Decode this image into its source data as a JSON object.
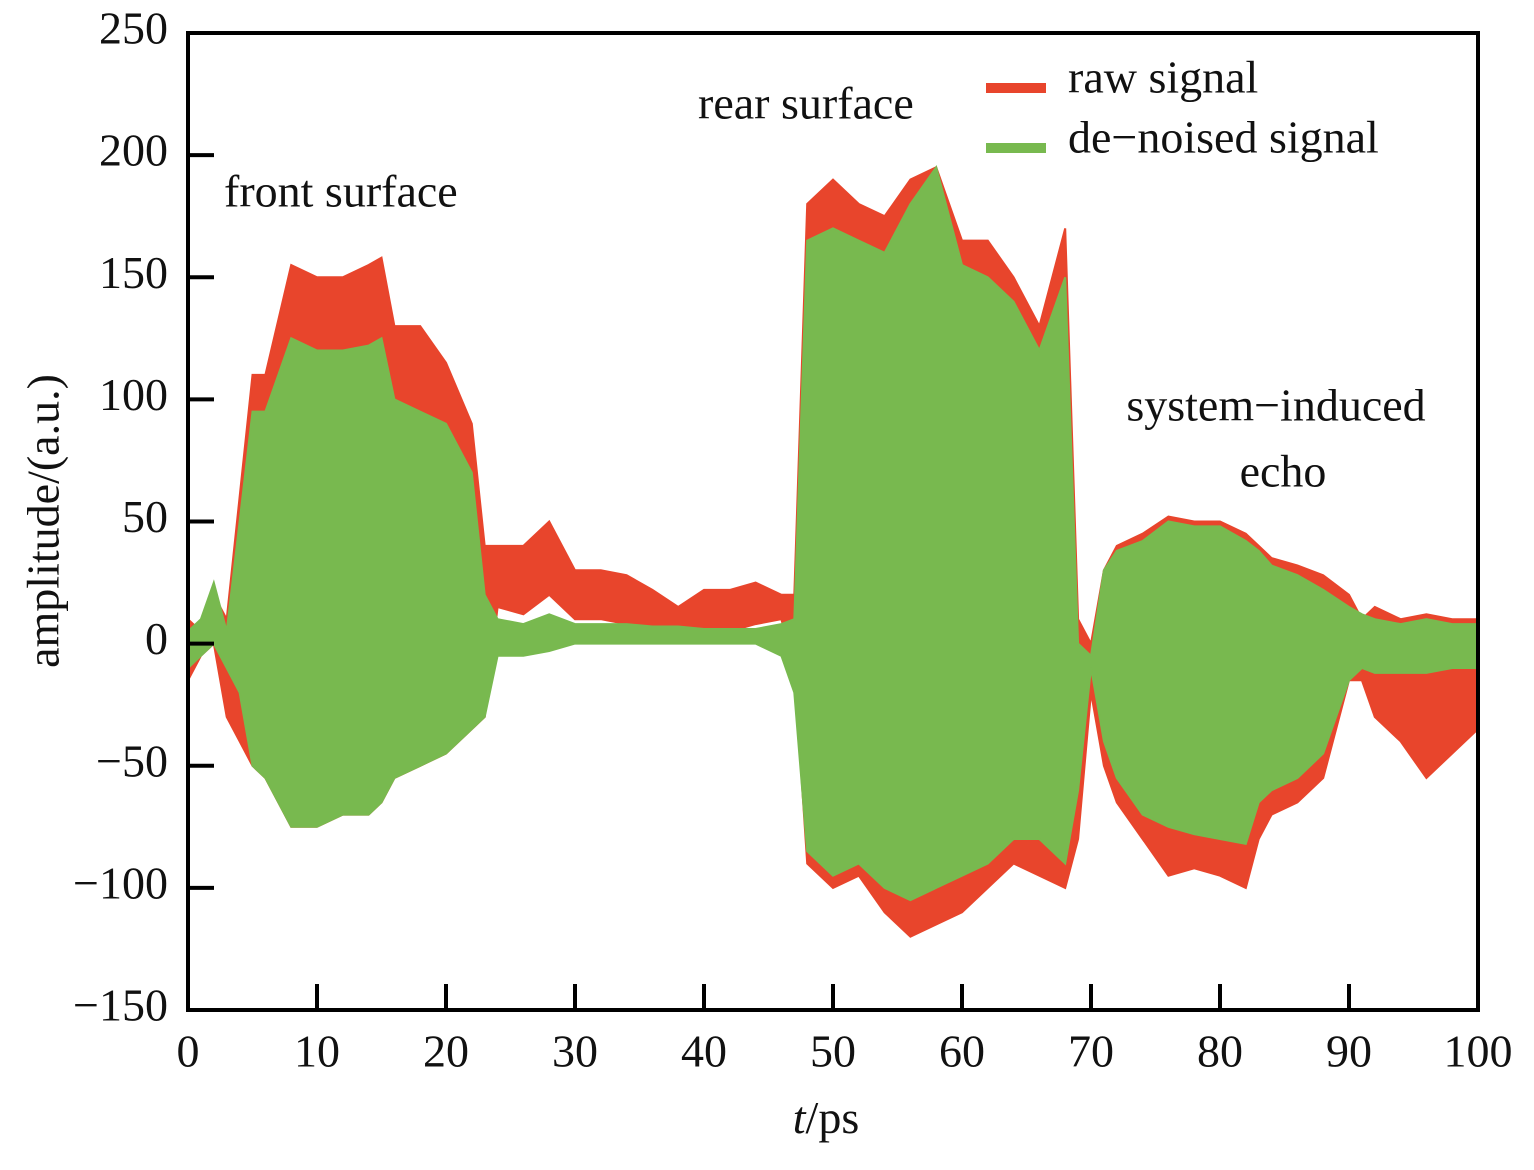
{
  "chart_data": {
    "type": "band",
    "xlabel_italic": "t",
    "xlabel_rest": "/ps",
    "ylabel": "amplitude/(a.u.)",
    "annotations": [
      "front surface",
      "rear surface",
      "system−induced",
      "echo"
    ],
    "xlim": [
      0,
      100
    ],
    "xticks": [
      0,
      10,
      20,
      30,
      40,
      50,
      60,
      70,
      80,
      90,
      100
    ],
    "ylim": [
      -150,
      250
    ],
    "yticks": [
      {
        "value": -150,
        "label": "−150"
      },
      {
        "value": -100,
        "label": "−100"
      },
      {
        "value": -50,
        "label": "−50"
      },
      0,
      50,
      100,
      150,
      200,
      250
    ],
    "legend": "upper right",
    "x": [
      0,
      1,
      2,
      3,
      4,
      5,
      6,
      8,
      10,
      12,
      14,
      15,
      16,
      18,
      20,
      22,
      23,
      24,
      26,
      28,
      30,
      32,
      34,
      36,
      38,
      40,
      42,
      44,
      46,
      47,
      48,
      50,
      52,
      54,
      56,
      58,
      60,
      62,
      64,
      66,
      68,
      69,
      70,
      71,
      72,
      74,
      76,
      78,
      80,
      82,
      83,
      84,
      86,
      88,
      90,
      91,
      92,
      94,
      96,
      98,
      100
    ],
    "series": [
      {
        "name": "raw signal",
        "color": "#e8452c",
        "upper": [
          10,
          5,
          20,
          10,
          60,
          110,
          110,
          155,
          150,
          150,
          155,
          158,
          130,
          130,
          115,
          90,
          40,
          40,
          40,
          50,
          30,
          30,
          28,
          22,
          15,
          22,
          22,
          25,
          20,
          20,
          180,
          190,
          180,
          175,
          190,
          195,
          165,
          165,
          150,
          130,
          170,
          10,
          0,
          30,
          40,
          45,
          52,
          50,
          50,
          45,
          40,
          35,
          32,
          28,
          20,
          10,
          15,
          10,
          12,
          10,
          10
        ],
        "lower": [
          -15,
          -5,
          0,
          -30,
          -40,
          -50,
          -55,
          -75,
          -75,
          -70,
          -70,
          -65,
          -55,
          -50,
          -45,
          -35,
          -30,
          15,
          12,
          20,
          10,
          10,
          8,
          5,
          5,
          5,
          5,
          8,
          10,
          -10,
          -90,
          -100,
          -95,
          -110,
          -120,
          -115,
          -110,
          -100,
          -90,
          -95,
          -100,
          -80,
          -20,
          -50,
          -65,
          -80,
          -95,
          -92,
          -95,
          -100,
          -80,
          -70,
          -65,
          -55,
          -15,
          -15,
          -30,
          -40,
          -55,
          -45,
          -35
        ]
      },
      {
        "name": "de−noised signal",
        "color": "#78b94f",
        "upper": [
          5,
          10,
          25,
          5,
          50,
          95,
          95,
          125,
          120,
          120,
          122,
          125,
          100,
          95,
          90,
          70,
          20,
          10,
          8,
          12,
          8,
          8,
          8,
          7,
          7,
          6,
          6,
          6,
          8,
          10,
          165,
          170,
          165,
          160,
          180,
          195,
          155,
          150,
          140,
          120,
          150,
          0,
          -5,
          30,
          38,
          42,
          50,
          48,
          48,
          42,
          38,
          32,
          28,
          22,
          15,
          12,
          10,
          8,
          10,
          8,
          8
        ],
        "lower": [
          -10,
          -5,
          0,
          -10,
          -20,
          -50,
          -55,
          -75,
          -75,
          -70,
          -70,
          -65,
          -55,
          -50,
          -45,
          -35,
          -30,
          -5,
          -5,
          -3,
          0,
          0,
          0,
          0,
          0,
          0,
          0,
          0,
          -5,
          -20,
          -85,
          -95,
          -90,
          -100,
          -105,
          -100,
          -95,
          -90,
          -80,
          -80,
          -90,
          -60,
          -10,
          -40,
          -55,
          -70,
          -75,
          -78,
          -80,
          -82,
          -65,
          -60,
          -55,
          -45,
          -15,
          -10,
          -12,
          -12,
          -12,
          -10,
          -10
        ]
      }
    ]
  }
}
